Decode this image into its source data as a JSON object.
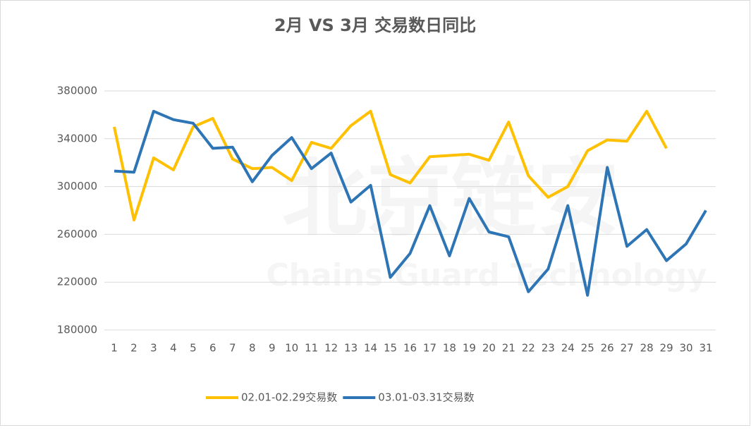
{
  "chart_data": {
    "type": "line",
    "title": "2月 VS 3月 交易数日同比",
    "watermark": [
      "北京链安",
      "Chains Guard Technology"
    ],
    "categories": [
      "1",
      "2",
      "3",
      "4",
      "5",
      "6",
      "7",
      "8",
      "9",
      "10",
      "11",
      "12",
      "13",
      "14",
      "15",
      "16",
      "17",
      "18",
      "19",
      "20",
      "21",
      "22",
      "23",
      "24",
      "25",
      "26",
      "27",
      "28",
      "29",
      "30",
      "31"
    ],
    "series": [
      {
        "name": "02.01-02.29交易数",
        "color": "#FFC000",
        "values": [
          350000,
          272000,
          324000,
          314000,
          350000,
          357000,
          323000,
          315000,
          316000,
          305000,
          337000,
          332000,
          351000,
          363000,
          310000,
          303000,
          325000,
          326000,
          327000,
          322000,
          354000,
          309000,
          291000,
          300000,
          330000,
          339000,
          338000,
          363000,
          332000,
          null,
          null
        ]
      },
      {
        "name": "03.01-03.31交易数",
        "color": "#2E75B6",
        "values": [
          313000,
          312000,
          363000,
          356000,
          353000,
          332000,
          333000,
          304000,
          326000,
          341000,
          315000,
          328000,
          287000,
          301000,
          224000,
          244000,
          284000,
          242000,
          290000,
          262000,
          258000,
          212000,
          231000,
          284000,
          209000,
          316000,
          250000,
          264000,
          238000,
          252000,
          280000
        ]
      }
    ],
    "ylim": [
      180000,
      380000
    ],
    "yticks": [
      180000,
      220000,
      260000,
      300000,
      340000,
      380000
    ],
    "grid": true,
    "legend": "bottom"
  }
}
